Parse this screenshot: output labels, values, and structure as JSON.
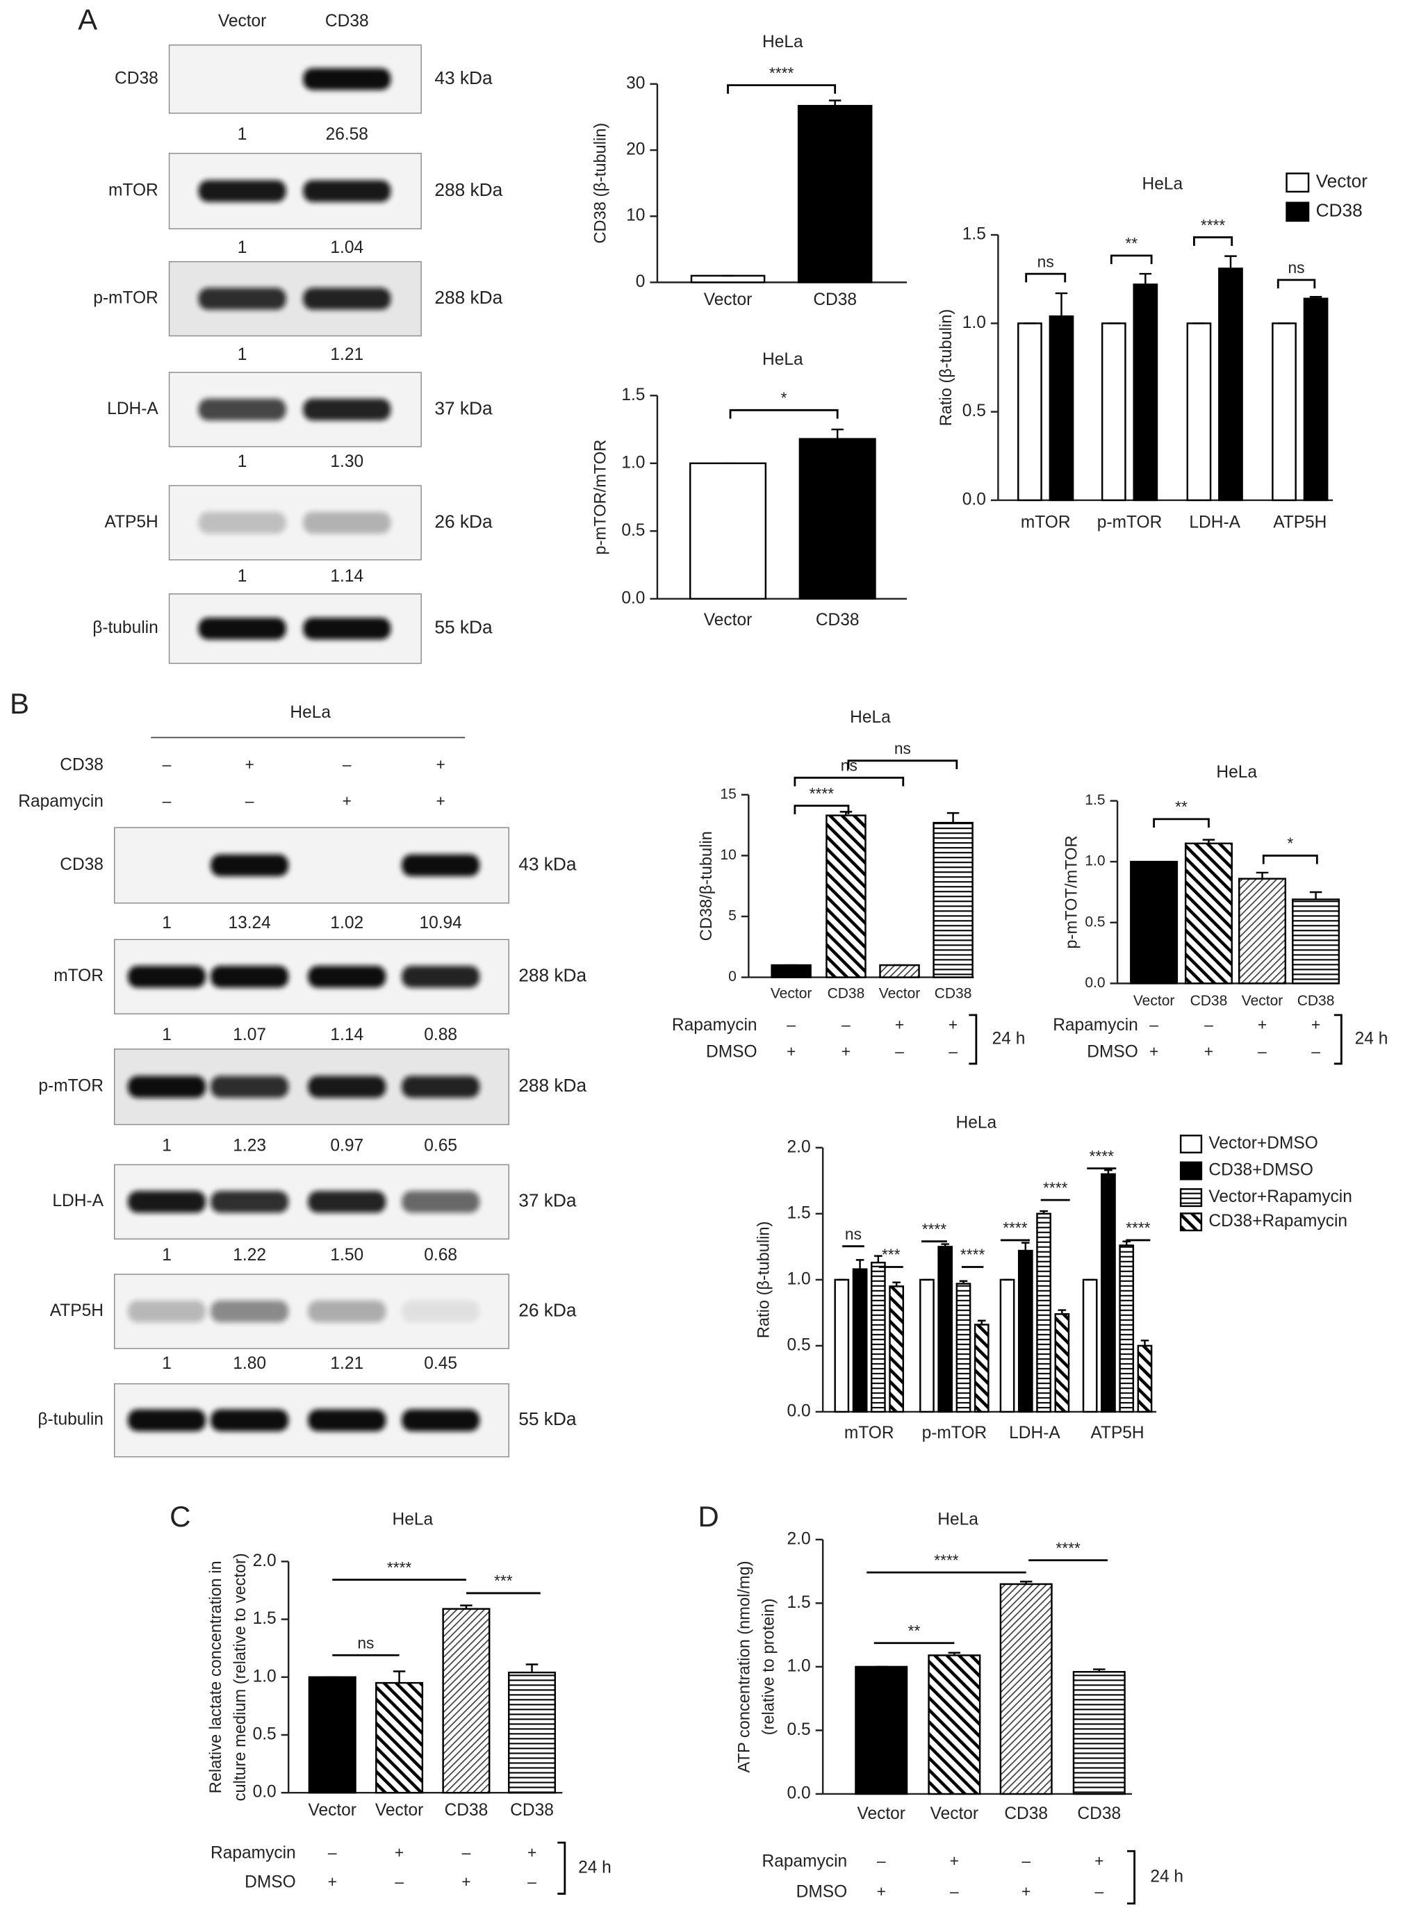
{
  "panel_labels": [
    "A",
    "B",
    "C",
    "D"
  ],
  "blot_a": {
    "lanes": [
      "Vector",
      "CD38"
    ],
    "rows": [
      {
        "protein": "CD38",
        "size": "43 kDa",
        "quantification": [
          "1",
          "26.58"
        ]
      },
      {
        "protein": "mTOR",
        "size": "288 kDa",
        "quantification": [
          "1",
          "1.04"
        ]
      },
      {
        "protein": "p-mTOR",
        "size": "288 kDa",
        "quantification": [
          "1",
          "1.21"
        ]
      },
      {
        "protein": "LDH-A",
        "size": "37 kDa",
        "quantification": [
          "1",
          "1.30"
        ]
      },
      {
        "protein": "ATP5H",
        "size": "26 kDa",
        "quantification": [
          "1",
          "1.14"
        ]
      },
      {
        "protein": "β-tubulin",
        "size": "55 kDa"
      }
    ]
  },
  "blot_b": {
    "cell_line": "HeLa",
    "treatments": [
      {
        "name": "CD38",
        "marks": [
          "–",
          "+",
          "–",
          "+"
        ]
      },
      {
        "name": "Rapamycin",
        "marks": [
          "–",
          "–",
          "+",
          "+"
        ]
      }
    ],
    "rows": [
      {
        "protein": "CD38",
        "size": "43 kDa",
        "quantification": [
          "1",
          "13.24",
          "1.02",
          "10.94"
        ]
      },
      {
        "protein": "mTOR",
        "size": "288 kDa",
        "quantification": [
          "1",
          "1.07",
          "1.14",
          "0.88"
        ]
      },
      {
        "protein": "p-mTOR",
        "size": "288 kDa",
        "quantification": [
          "1",
          "1.23",
          "0.97",
          "0.65"
        ]
      },
      {
        "protein": "LDH-A",
        "size": "37 kDa",
        "quantification": [
          "1",
          "1.22",
          "1.50",
          "0.68"
        ]
      },
      {
        "protein": "ATP5H",
        "size": "26 kDa",
        "quantification": [
          "1",
          "1.80",
          "1.21",
          "0.45"
        ]
      },
      {
        "protein": "β-tubulin",
        "size": "55 kDa"
      }
    ]
  },
  "chart_data": [
    {
      "type": "bar",
      "title": "HeLa",
      "y_label": "CD38 (β-tubulin)",
      "categories": [
        "Vector",
        "CD38"
      ],
      "values": [
        1,
        26.7
      ],
      "errors": [
        0,
        0.8
      ],
      "colors": [
        "#ffffff",
        "#000000"
      ],
      "patterns": [
        "solid",
        "solid"
      ],
      "ylim": [
        0,
        30
      ],
      "yticks": [
        0,
        10,
        20,
        30
      ],
      "annotations": [
        "****"
      ]
    },
    {
      "type": "bar",
      "title": "HeLa",
      "y_label": "p-mTOR/mTOR",
      "categories": [
        "Vector",
        "CD38"
      ],
      "values": [
        1.0,
        1.18
      ],
      "errors": [
        0,
        0.07
      ],
      "colors": [
        "#ffffff",
        "#000000"
      ],
      "patterns": [
        "solid",
        "solid"
      ],
      "ylim": [
        0,
        1.5
      ],
      "yticks": [
        {
          "value": 0,
          "label": "0.0"
        },
        0.5,
        {
          "value": 1,
          "label": "1.0"
        },
        1.5
      ],
      "annotations": [
        "*"
      ]
    },
    {
      "type": "bar",
      "title": "HeLa",
      "y_label": "Ratio (β-tubulin)",
      "categories": [
        "mTOR",
        "p-mTOR",
        "LDH-A",
        "ATP5H"
      ],
      "series": [
        {
          "name": "Vector",
          "color": "#ffffff",
          "pattern": "solid",
          "values": [
            1,
            1,
            1,
            1
          ],
          "errors": [
            0,
            0,
            0,
            0
          ]
        },
        {
          "name": "CD38",
          "color": "#000000",
          "pattern": "solid",
          "values": [
            1.04,
            1.22,
            1.31,
            1.14
          ],
          "errors": [
            0.13,
            0.06,
            0.07,
            0.01
          ]
        }
      ],
      "ylim": [
        0,
        1.5
      ],
      "yticks": [
        {
          "value": 0,
          "label": "0.0"
        },
        0.5,
        {
          "value": 1,
          "label": "1.0"
        },
        1.5
      ],
      "annotations": [
        "ns",
        "**",
        "****",
        "ns"
      ]
    },
    {
      "type": "bar",
      "title": "HeLa",
      "y_label": "CD38/β-tubulin",
      "categories": [
        "Vector",
        "CD38",
        "Vector",
        "CD38"
      ],
      "values": [
        1.0,
        13.3,
        1.0,
        12.7
      ],
      "errors": [
        0,
        0.3,
        0,
        0.8
      ],
      "colors": [
        "#000000",
        "#ffffff",
        "#ffffff",
        "#ffffff"
      ],
      "patterns": [
        "solid",
        "diagonal",
        "fine-diagonal",
        "horizontal"
      ],
      "ylim": [
        0,
        15
      ],
      "yticks": [
        0,
        5,
        10,
        15
      ],
      "annotations": [
        "****",
        "ns",
        "ns"
      ],
      "conditions": [
        {
          "name": "Rapamycin",
          "marks": [
            "–",
            "–",
            "+",
            "+"
          ]
        },
        {
          "name": "DMSO",
          "marks": [
            "+",
            "+",
            "–",
            "–"
          ]
        }
      ],
      "duration": "24 h"
    },
    {
      "type": "bar",
      "title": "HeLa",
      "y_label": "p-mTOT/mTOR",
      "categories": [
        "Vector",
        "CD38",
        "Vector",
        "CD38"
      ],
      "values": [
        1.0,
        1.15,
        0.86,
        0.69
      ],
      "errors": [
        0,
        0.03,
        0.05,
        0.06
      ],
      "colors": [
        "#000000",
        "#ffffff",
        "#ffffff",
        "#ffffff"
      ],
      "patterns": [
        "solid",
        "diagonal",
        "fine-diagonal",
        "horizontal"
      ],
      "ylim": [
        0,
        1.5
      ],
      "yticks": [
        {
          "value": 0,
          "label": "0.0"
        },
        0.5,
        {
          "value": 1,
          "label": "1.0"
        },
        1.5
      ],
      "annotations": [
        "**",
        "*"
      ],
      "conditions": [
        {
          "name": "Rapamycin",
          "marks": [
            "–",
            "–",
            "+",
            "+"
          ]
        },
        {
          "name": "DMSO",
          "marks": [
            "+",
            "+",
            "–",
            "–"
          ]
        }
      ],
      "duration": "24 h"
    },
    {
      "type": "bar",
      "title": "HeLa",
      "y_label": "Ratio (β-tubulin)",
      "categories": [
        "mTOR",
        "p-mTOR",
        "LDH-A",
        "ATP5H"
      ],
      "series": [
        {
          "name": "Vector+DMSO",
          "color": "#ffffff",
          "pattern": "solid",
          "values": [
            1,
            1,
            1,
            1
          ],
          "errors": [
            0,
            0,
            0,
            0
          ]
        },
        {
          "name": "CD38+DMSO",
          "color": "#000000",
          "pattern": "solid",
          "values": [
            1.08,
            1.25,
            1.22,
            1.8
          ],
          "errors": [
            0.07,
            0.02,
            0.06,
            0.03
          ]
        },
        {
          "name": "Vector+Rapamycin",
          "color": "#ffffff",
          "pattern": "horizontal",
          "values": [
            1.13,
            0.97,
            1.5,
            1.26
          ],
          "errors": [
            0.05,
            0.02,
            0.02,
            0.03
          ]
        },
        {
          "name": "CD38+Rapamycin",
          "color": "#ffffff",
          "pattern": "diagonal",
          "values": [
            0.95,
            0.66,
            0.74,
            0.5
          ],
          "errors": [
            0.03,
            0.03,
            0.03,
            0.04
          ]
        }
      ],
      "ylim": [
        0,
        2
      ],
      "yticks": [
        {
          "value": 0,
          "label": "0.0"
        },
        0.5,
        {
          "value": 1,
          "label": "1.0"
        },
        1.5,
        {
          "value": 2,
          "label": "2.0"
        }
      ],
      "annotations": [
        "ns",
        "***",
        "****",
        "****",
        "****",
        "****",
        "****",
        "****"
      ]
    },
    {
      "type": "bar",
      "title": "HeLa",
      "y_label": [
        "Relative lactate concentration in",
        "culture medium (relative to vector)"
      ],
      "categories": [
        "Vector",
        "Vector",
        "CD38",
        "CD38"
      ],
      "values": [
        1.0,
        0.95,
        1.59,
        1.04
      ],
      "errors": [
        0,
        0.1,
        0.03,
        0.07
      ],
      "colors": [
        "#000000",
        "#ffffff",
        "#ffffff",
        "#ffffff"
      ],
      "patterns": [
        "solid",
        "diagonal",
        "fine-diagonal",
        "horizontal"
      ],
      "ylim": [
        0,
        2
      ],
      "yticks": [
        {
          "value": 0,
          "label": "0.0"
        },
        0.5,
        {
          "value": 1,
          "label": "1.0"
        },
        1.5,
        {
          "value": 2,
          "label": "2.0"
        }
      ],
      "annotations": [
        "****",
        "ns",
        "***"
      ],
      "conditions": [
        {
          "name": "Rapamycin",
          "marks": [
            "–",
            "+",
            "–",
            "+"
          ]
        },
        {
          "name": "DMSO",
          "marks": [
            "+",
            "–",
            "+",
            "–"
          ]
        }
      ],
      "duration": "24 h"
    },
    {
      "type": "bar",
      "title": "HeLa",
      "y_label": [
        "ATP concentration (nmol/mg)",
        "(relative to protein)"
      ],
      "categories": [
        "Vector",
        "Vector",
        "CD38",
        "CD38"
      ],
      "values": [
        1.0,
        1.09,
        1.65,
        0.96
      ],
      "errors": [
        0,
        0.02,
        0.02,
        0.02
      ],
      "colors": [
        "#000000",
        "#ffffff",
        "#ffffff",
        "#ffffff"
      ],
      "patterns": [
        "solid",
        "diagonal",
        "fine-diagonal",
        "horizontal"
      ],
      "ylim": [
        0,
        2
      ],
      "yticks": [
        {
          "value": 0,
          "label": "0.0"
        },
        0.5,
        {
          "value": 1,
          "label": "1.0"
        },
        1.5,
        {
          "value": 2,
          "label": "2.0"
        }
      ],
      "annotations": [
        "****",
        "**",
        "****"
      ],
      "conditions": [
        {
          "name": "Rapamycin",
          "marks": [
            "–",
            "+",
            "–",
            "+"
          ]
        },
        {
          "name": "DMSO",
          "marks": [
            "+",
            "–",
            "+",
            "–"
          ]
        }
      ],
      "duration": "24 h"
    }
  ]
}
